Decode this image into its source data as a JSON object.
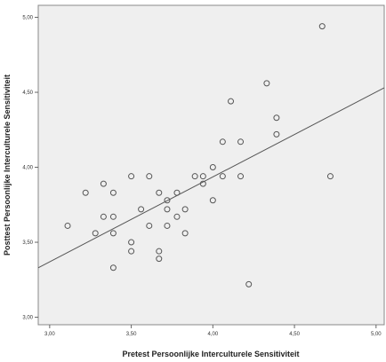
{
  "chart_data": {
    "type": "scatter",
    "title": "",
    "xlabel": "Pretest Persoonlijke Interculturele Sensitiviteit",
    "ylabel": "Posttest Persoonlijke Interculturele Sensitiviteit",
    "xlim": [
      2.93,
      5.05
    ],
    "ylim": [
      2.95,
      5.08
    ],
    "x_ticks": [
      "3,00",
      "3,50",
      "4,00",
      "4,50",
      "5,00"
    ],
    "x_tick_values": [
      3.0,
      3.5,
      4.0,
      4.5,
      5.0
    ],
    "y_ticks": [
      "3,00",
      "3,50",
      "4,00",
      "4,50",
      "5,00"
    ],
    "y_tick_values": [
      3.0,
      3.5,
      4.0,
      4.5,
      5.0
    ],
    "grid": false,
    "background_color": "#efefef",
    "marker_color": "#555555",
    "line_color": "#555555",
    "points": [
      {
        "x": 3.11,
        "y": 3.61
      },
      {
        "x": 3.22,
        "y": 3.83
      },
      {
        "x": 3.28,
        "y": 3.56
      },
      {
        "x": 3.33,
        "y": 3.89
      },
      {
        "x": 3.33,
        "y": 3.67
      },
      {
        "x": 3.39,
        "y": 3.83
      },
      {
        "x": 3.39,
        "y": 3.67
      },
      {
        "x": 3.39,
        "y": 3.56
      },
      {
        "x": 3.39,
        "y": 3.33
      },
      {
        "x": 3.5,
        "y": 3.94
      },
      {
        "x": 3.5,
        "y": 3.5
      },
      {
        "x": 3.5,
        "y": 3.44
      },
      {
        "x": 3.56,
        "y": 3.72
      },
      {
        "x": 3.61,
        "y": 3.94
      },
      {
        "x": 3.61,
        "y": 3.61
      },
      {
        "x": 3.67,
        "y": 3.83
      },
      {
        "x": 3.67,
        "y": 3.44
      },
      {
        "x": 3.67,
        "y": 3.39
      },
      {
        "x": 3.72,
        "y": 3.78
      },
      {
        "x": 3.72,
        "y": 3.72
      },
      {
        "x": 3.72,
        "y": 3.61
      },
      {
        "x": 3.78,
        "y": 3.83
      },
      {
        "x": 3.78,
        "y": 3.67
      },
      {
        "x": 3.83,
        "y": 3.72
      },
      {
        "x": 3.83,
        "y": 3.56
      },
      {
        "x": 3.89,
        "y": 3.94
      },
      {
        "x": 3.94,
        "y": 3.94
      },
      {
        "x": 3.94,
        "y": 3.89
      },
      {
        "x": 4.0,
        "y": 4.0
      },
      {
        "x": 4.0,
        "y": 3.78
      },
      {
        "x": 4.06,
        "y": 4.17
      },
      {
        "x": 4.06,
        "y": 3.94
      },
      {
        "x": 4.11,
        "y": 4.44
      },
      {
        "x": 4.17,
        "y": 4.17
      },
      {
        "x": 4.17,
        "y": 3.94
      },
      {
        "x": 4.22,
        "y": 3.22
      },
      {
        "x": 4.33,
        "y": 4.56
      },
      {
        "x": 4.39,
        "y": 4.33
      },
      {
        "x": 4.39,
        "y": 4.22
      },
      {
        "x": 4.67,
        "y": 4.94
      },
      {
        "x": 4.72,
        "y": 3.94
      }
    ],
    "regression_line": {
      "x": [
        2.93,
        5.05
      ],
      "y": [
        3.33,
        4.53
      ]
    }
  }
}
